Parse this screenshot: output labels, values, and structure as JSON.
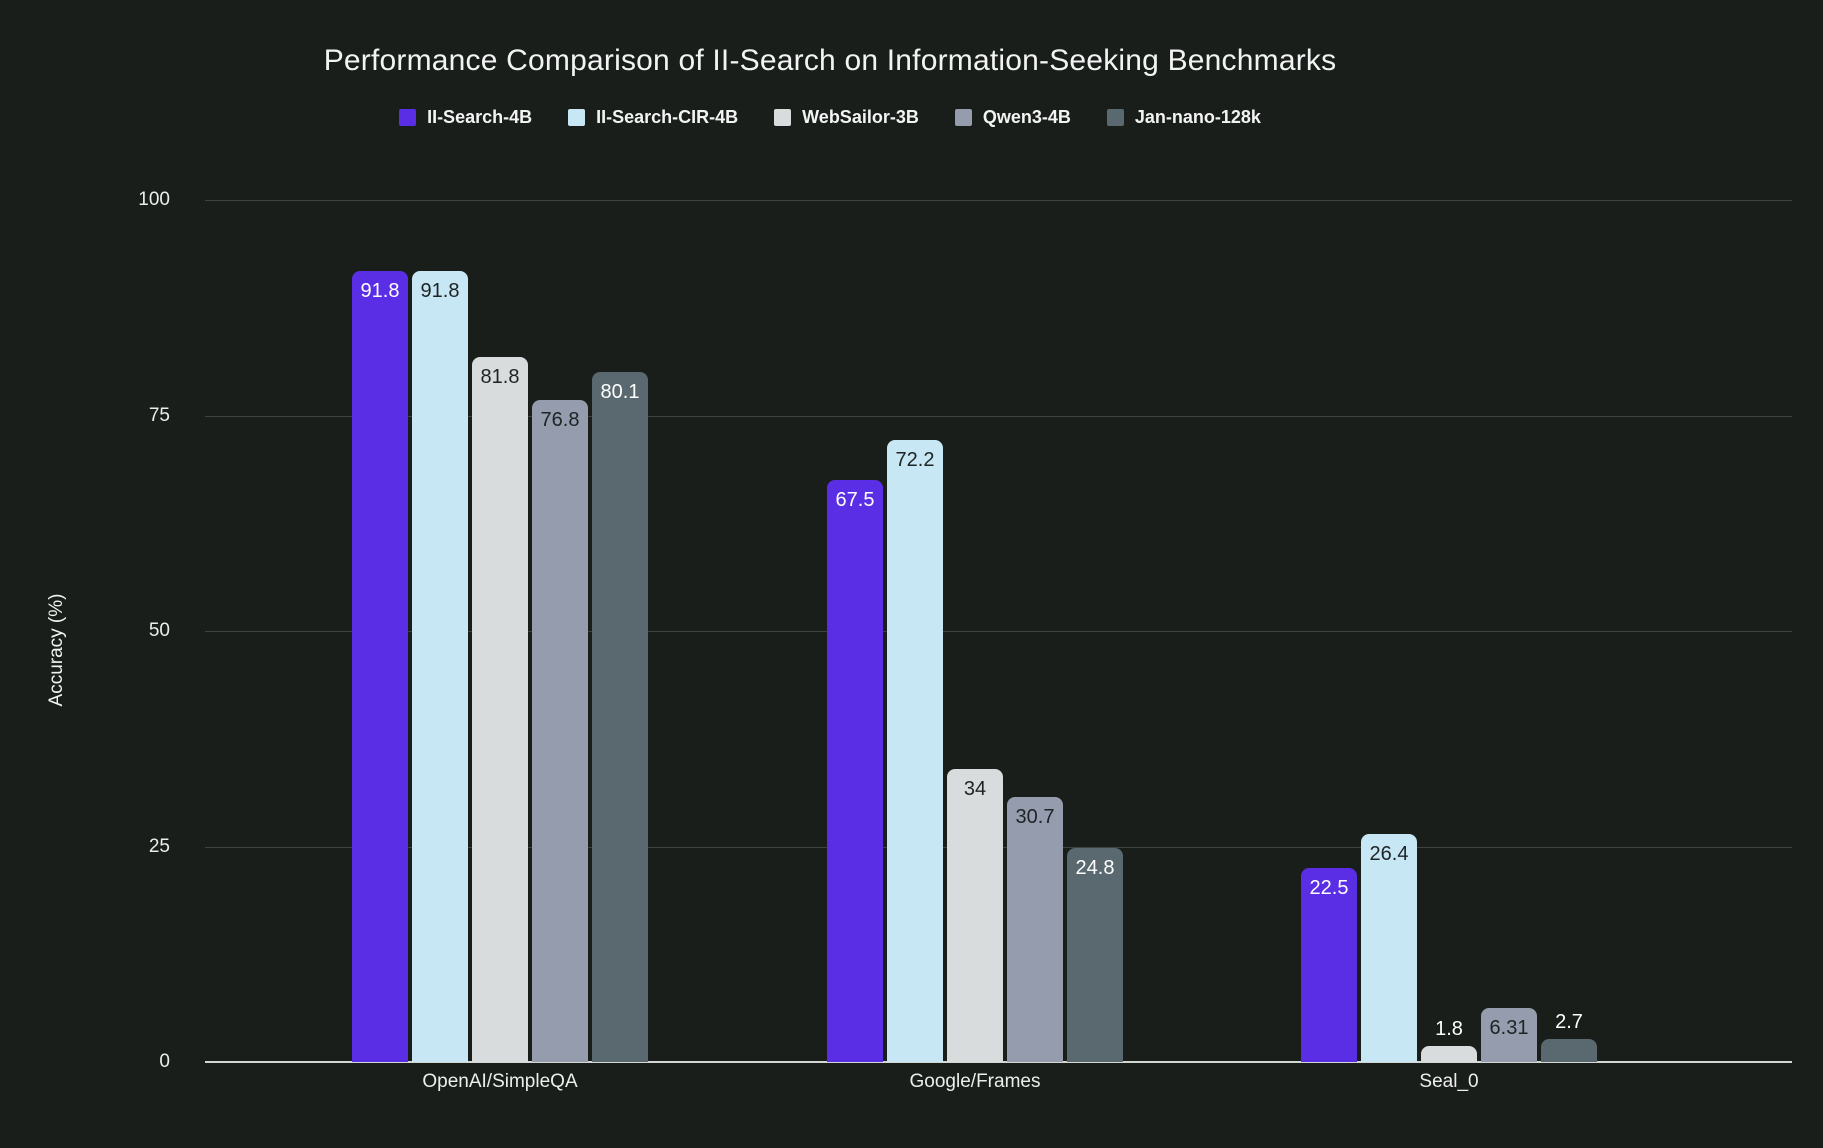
{
  "chart_data": {
    "type": "bar",
    "title": "Performance Comparison of II-Search on Information-Seeking Benchmarks",
    "ylabel": "Accuracy (%)",
    "xlabel": "",
    "categories": [
      "OpenAI/SimpleQA",
      "Google/Frames",
      "Seal_0"
    ],
    "series": [
      {
        "name": "II-Search-4B",
        "color": "#5a2ee4",
        "label_color": "#ffffff",
        "values": [
          91.8,
          67.5,
          22.5
        ],
        "labels": [
          "91.8",
          "67.5",
          "22.5"
        ]
      },
      {
        "name": "II-Search-CIR-4B",
        "color": "#c6e7f3",
        "label_color": "#1e2326",
        "values": [
          91.8,
          72.2,
          26.4
        ],
        "labels": [
          "91.8",
          "72.2",
          "26.4"
        ]
      },
      {
        "name": "WebSailor-3B",
        "color": "#d8dcdc",
        "label_color": "#1e2326",
        "values": [
          81.8,
          34.0,
          1.8
        ],
        "labels": [
          "81.8",
          "34",
          "1.8"
        ]
      },
      {
        "name": "Qwen3-4B",
        "color": "#949cad",
        "label_color": "#1e2326",
        "values": [
          76.8,
          30.7,
          6.31
        ],
        "labels": [
          "76.8",
          "30.7",
          "6.31"
        ]
      },
      {
        "name": "Jan-nano-128k",
        "color": "#5a686f",
        "label_color": "#ffffff",
        "values": [
          80.1,
          24.8,
          2.7
        ],
        "labels": [
          "80.1",
          "24.8",
          "2.7"
        ]
      }
    ],
    "yticks": [
      0,
      25,
      50,
      75,
      100
    ],
    "ylim": [
      0,
      100
    ],
    "grid": true,
    "legend_position": "top",
    "colors": {
      "background": "#1a1e1b",
      "text": "#f2f4f3",
      "gridline": "#3e4340",
      "axis_line": "#d4d8d5"
    }
  }
}
